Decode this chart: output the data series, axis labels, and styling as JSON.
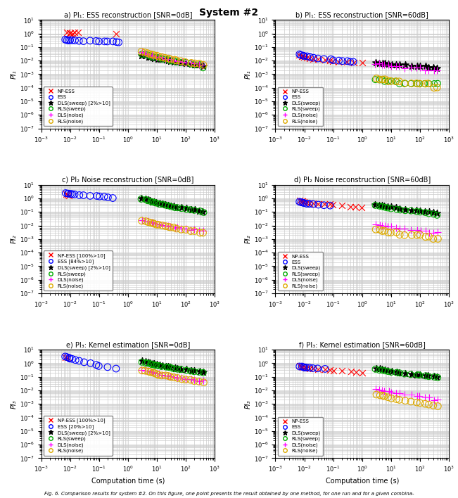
{
  "title": "System #2",
  "subplot_titles": [
    "a) PI₁: ESS reconstruction [SNR=0dB]",
    "b) PI₁: ESS reconstruction [SNR=60dB]",
    "c) PI₂ Noise reconstruction [SNR=0dB]",
    "d) PI₂ Noise reconstruction [SNR=60dB]",
    "e) PI₃: Kernel estimation [SNR=0dB]",
    "f) PI₃: Kernel estimation [SNR=60dB]"
  ],
  "ylabels": [
    "PI₁",
    "PI₁",
    "PI₂",
    "PI₂",
    "PI₃",
    "PI₃"
  ],
  "xlabel": "Computation time (s)",
  "methods": [
    "NP-ESS",
    "ESS",
    "DLS(sweep)",
    "RLS(sweep)",
    "DLS(noise)",
    "RLS(noise)"
  ],
  "colors": [
    "red",
    "blue",
    "black",
    "#00aa00",
    "magenta",
    "#ddaa00"
  ],
  "markers": [
    "x",
    "o",
    "*",
    "o",
    "+",
    "o"
  ],
  "marker_sizes": [
    5,
    6,
    5,
    5,
    5,
    6
  ],
  "legend_a": [
    "NP-ESS",
    "ESS",
    "DLS(sweep) [2%>10]",
    "RLS(sweep)",
    "DLS(noise)",
    "RLS(noise)"
  ],
  "legend_c": [
    "NP-ESS [100%>10]",
    "ESS [84%>10]",
    "DLS(sweep) [2%>10]",
    "RLS(sweep)",
    "DLS(noise)",
    "RLS(noise)"
  ],
  "legend_e": [
    "NP-ESS [100%>10]",
    "ESS [20%>10]",
    "DLS(sweep) [2%>10]",
    "RLS(sweep)",
    "DLS(noise)",
    "RLS(noise)"
  ],
  "legend_b": [
    "NP-ESS",
    "ESS",
    "DLS(sweep)",
    "RLS(sweep)",
    "DLS(noise)",
    "RLS(noise)"
  ],
  "subplot_a": {
    "NP-ESS": {
      "x": [
        0.008,
        0.009,
        0.01,
        0.012,
        0.015,
        0.02,
        0.4
      ],
      "y": [
        1.2,
        1.1,
        1.0,
        1.05,
        1.1,
        1.15,
        1.0
      ]
    },
    "ESS": {
      "x": [
        0.007,
        0.008,
        0.009,
        0.01,
        0.012,
        0.015,
        0.02,
        0.03,
        0.05,
        0.08,
        0.1,
        0.15,
        0.2,
        0.3,
        0.4,
        0.5
      ],
      "y": [
        0.35,
        0.33,
        0.32,
        0.31,
        0.3,
        0.3,
        0.29,
        0.28,
        0.29,
        0.28,
        0.27,
        0.26,
        0.27,
        0.25,
        0.24,
        0.22
      ]
    },
    "DLS(sweep)": {
      "x": [
        3,
        4,
        5,
        6,
        7,
        8,
        10,
        12,
        15,
        20,
        25,
        30,
        40,
        50,
        70,
        100,
        150,
        200,
        300,
        400
      ],
      "y": [
        0.025,
        0.022,
        0.02,
        0.018,
        0.016,
        0.015,
        0.014,
        0.013,
        0.012,
        0.011,
        0.01,
        0.009,
        0.008,
        0.008,
        0.007,
        0.006,
        0.006,
        0.005,
        0.005,
        0.004
      ]
    },
    "RLS(sweep)": {
      "x": [
        3,
        4,
        5,
        6,
        7,
        8,
        10,
        12,
        15,
        20,
        25,
        30,
        40,
        50,
        70,
        100,
        150,
        200,
        300,
        400
      ],
      "y": [
        0.03,
        0.028,
        0.025,
        0.022,
        0.02,
        0.018,
        0.016,
        0.015,
        0.013,
        0.012,
        0.011,
        0.01,
        0.009,
        0.008,
        0.007,
        0.007,
        0.006,
        0.005,
        0.005,
        0.003
      ]
    },
    "DLS(noise)": {
      "x": [
        3,
        4,
        5,
        6,
        7,
        8,
        10,
        12,
        15,
        20,
        25,
        30,
        40,
        50,
        70,
        100,
        150,
        200,
        300,
        400
      ],
      "y": [
        0.04,
        0.035,
        0.03,
        0.028,
        0.025,
        0.022,
        0.02,
        0.018,
        0.016,
        0.014,
        0.013,
        0.012,
        0.01,
        0.009,
        0.008,
        0.007,
        0.007,
        0.006,
        0.005,
        0.005
      ]
    },
    "RLS(noise)": {
      "x": [
        3,
        4,
        5,
        6,
        7,
        8,
        10,
        12,
        15,
        20,
        25,
        30,
        40,
        50,
        70,
        100,
        150,
        200,
        300,
        400
      ],
      "y": [
        0.045,
        0.04,
        0.035,
        0.03,
        0.028,
        0.025,
        0.022,
        0.02,
        0.018,
        0.016,
        0.014,
        0.012,
        0.011,
        0.01,
        0.009,
        0.008,
        0.007,
        0.006,
        0.006,
        0.005
      ]
    }
  },
  "subplot_b": {
    "NP-ESS": {
      "x": [
        0.007,
        0.008,
        0.009,
        0.01,
        0.012,
        0.015,
        0.02,
        0.03,
        0.05,
        0.08,
        0.1,
        0.15,
        0.3,
        0.5,
        1.0
      ],
      "y": [
        0.025,
        0.022,
        0.02,
        0.018,
        0.016,
        0.014,
        0.013,
        0.012,
        0.011,
        0.01,
        0.009,
        0.008,
        0.008,
        0.007,
        0.007
      ]
    },
    "ESS": {
      "x": [
        0.007,
        0.008,
        0.009,
        0.01,
        0.012,
        0.015,
        0.02,
        0.03,
        0.05,
        0.08,
        0.1,
        0.15,
        0.2,
        0.3,
        0.4,
        0.5
      ],
      "y": [
        0.028,
        0.026,
        0.024,
        0.022,
        0.02,
        0.018,
        0.016,
        0.015,
        0.013,
        0.012,
        0.011,
        0.01,
        0.009,
        0.009,
        0.008,
        0.008
      ]
    },
    "DLS(sweep)": {
      "x": [
        3,
        4,
        5,
        6,
        8,
        10,
        15,
        20,
        30,
        50,
        80,
        100,
        150,
        200,
        300,
        400
      ],
      "y": [
        0.007,
        0.007,
        0.006,
        0.006,
        0.006,
        0.005,
        0.005,
        0.005,
        0.005,
        0.004,
        0.004,
        0.004,
        0.004,
        0.003,
        0.003,
        0.003
      ]
    },
    "RLS(sweep)": {
      "x": [
        3,
        4,
        5,
        6,
        8,
        10,
        15,
        20,
        30,
        50,
        80,
        100,
        150,
        200,
        300,
        400
      ],
      "y": [
        0.0004,
        0.0004,
        0.0004,
        0.0003,
        0.0003,
        0.0003,
        0.0003,
        0.0002,
        0.0002,
        0.0002,
        0.0002,
        0.0002,
        0.0002,
        0.0002,
        0.0002,
        0.0002
      ]
    },
    "DLS(noise)": {
      "x": [
        3,
        4,
        5,
        6,
        8,
        10,
        15,
        20,
        30,
        50,
        80,
        100,
        150,
        200,
        300,
        400
      ],
      "y": [
        0.006,
        0.006,
        0.005,
        0.005,
        0.005,
        0.004,
        0.004,
        0.004,
        0.003,
        0.003,
        0.003,
        0.003,
        0.002,
        0.002,
        0.002,
        0.002
      ]
    },
    "RLS(noise)": {
      "x": [
        3,
        4,
        5,
        6,
        8,
        10,
        15,
        20,
        30,
        50,
        80,
        100,
        150,
        200,
        300,
        400
      ],
      "y": [
        0.0005,
        0.0004,
        0.0004,
        0.0004,
        0.0003,
        0.0003,
        0.0003,
        0.0003,
        0.0002,
        0.0002,
        0.0002,
        0.0002,
        0.0002,
        0.0002,
        0.0001,
        0.0001
      ]
    }
  },
  "subplot_c": {
    "NP-ESS": {
      "x": [
        0.007,
        0.008,
        0.009
      ],
      "y": [
        2.0,
        1.8,
        1.5
      ]
    },
    "ESS": {
      "x": [
        0.007,
        0.008,
        0.009,
        0.01,
        0.012,
        0.015,
        0.02,
        0.03,
        0.05,
        0.08,
        0.1,
        0.15,
        0.2,
        0.3
      ],
      "y": [
        2.5,
        2.3,
        2.2,
        2.1,
        2.0,
        1.9,
        1.8,
        1.7,
        1.6,
        1.5,
        1.4,
        1.3,
        1.2,
        1.1
      ]
    },
    "DLS(sweep)": {
      "x": [
        3,
        4,
        5,
        6,
        7,
        8,
        10,
        12,
        15,
        20,
        25,
        30,
        40,
        50,
        70,
        100,
        150,
        200,
        300,
        400
      ],
      "y": [
        1.0,
        0.9,
        0.8,
        0.7,
        0.6,
        0.55,
        0.5,
        0.45,
        0.4,
        0.35,
        0.3,
        0.28,
        0.25,
        0.22,
        0.2,
        0.18,
        0.16,
        0.15,
        0.12,
        0.1
      ]
    },
    "RLS(sweep)": {
      "x": [
        3,
        4,
        5,
        6,
        7,
        8,
        10,
        12,
        15,
        20,
        25,
        30,
        40,
        50,
        70,
        100,
        150,
        200,
        300,
        400
      ],
      "y": [
        0.9,
        0.8,
        0.7,
        0.6,
        0.55,
        0.5,
        0.45,
        0.4,
        0.35,
        0.3,
        0.28,
        0.25,
        0.22,
        0.2,
        0.18,
        0.16,
        0.14,
        0.13,
        0.11,
        0.09
      ]
    },
    "DLS(noise)": {
      "x": [
        3,
        4,
        5,
        6,
        7,
        8,
        10,
        12,
        15,
        20,
        25,
        30,
        40,
        50,
        70,
        100,
        150,
        200,
        300,
        400
      ],
      "y": [
        0.025,
        0.022,
        0.02,
        0.018,
        0.016,
        0.015,
        0.013,
        0.012,
        0.011,
        0.01,
        0.009,
        0.008,
        0.007,
        0.007,
        0.006,
        0.006,
        0.005,
        0.005,
        0.004,
        0.004
      ]
    },
    "RLS(noise)": {
      "x": [
        3,
        4,
        5,
        6,
        7,
        8,
        10,
        12,
        15,
        20,
        25,
        30,
        40,
        50,
        70,
        100,
        150,
        200,
        300,
        400
      ],
      "y": [
        0.022,
        0.02,
        0.018,
        0.016,
        0.014,
        0.013,
        0.012,
        0.011,
        0.01,
        0.009,
        0.008,
        0.007,
        0.007,
        0.006,
        0.005,
        0.005,
        0.004,
        0.004,
        0.003,
        0.003
      ]
    }
  },
  "subplot_d": {
    "NP-ESS": {
      "x": [
        0.007,
        0.008,
        0.009,
        0.01,
        0.012,
        0.015,
        0.02,
        0.03,
        0.05,
        0.08,
        0.1,
        0.2,
        0.4,
        0.6,
        1.0
      ],
      "y": [
        0.7,
        0.65,
        0.6,
        0.55,
        0.5,
        0.45,
        0.42,
        0.4,
        0.38,
        0.35,
        0.32,
        0.3,
        0.25,
        0.22,
        0.2
      ]
    },
    "ESS": {
      "x": [
        0.007,
        0.008,
        0.009,
        0.01,
        0.012,
        0.015,
        0.02,
        0.03,
        0.05,
        0.08
      ],
      "y": [
        0.55,
        0.5,
        0.48,
        0.45,
        0.42,
        0.4,
        0.38,
        0.35,
        0.32,
        0.3
      ]
    },
    "DLS(sweep)": {
      "x": [
        3,
        4,
        5,
        6,
        8,
        10,
        15,
        20,
        30,
        50,
        80,
        100,
        150,
        200,
        300,
        400
      ],
      "y": [
        0.35,
        0.32,
        0.3,
        0.28,
        0.25,
        0.22,
        0.2,
        0.18,
        0.16,
        0.14,
        0.13,
        0.12,
        0.11,
        0.1,
        0.09,
        0.08
      ]
    },
    "RLS(sweep)": {
      "x": [
        3,
        4,
        5,
        6,
        8,
        10,
        15,
        20,
        30,
        50,
        80,
        100,
        150,
        200,
        300,
        400
      ],
      "y": [
        0.3,
        0.28,
        0.25,
        0.22,
        0.2,
        0.18,
        0.16,
        0.14,
        0.13,
        0.12,
        0.11,
        0.1,
        0.09,
        0.08,
        0.07,
        0.06
      ]
    },
    "DLS(noise)": {
      "x": [
        3,
        4,
        5,
        6,
        8,
        10,
        15,
        20,
        30,
        50,
        80,
        100,
        150,
        200,
        300,
        400
      ],
      "y": [
        0.012,
        0.011,
        0.01,
        0.009,
        0.008,
        0.008,
        0.007,
        0.006,
        0.006,
        0.005,
        0.005,
        0.004,
        0.004,
        0.003,
        0.003,
        0.003
      ]
    },
    "RLS(noise)": {
      "x": [
        3,
        4,
        5,
        6,
        8,
        10,
        15,
        20,
        30,
        50,
        80,
        100,
        150,
        200,
        300,
        400
      ],
      "y": [
        0.005,
        0.005,
        0.004,
        0.004,
        0.003,
        0.003,
        0.003,
        0.002,
        0.002,
        0.002,
        0.002,
        0.002,
        0.0015,
        0.0015,
        0.001,
        0.001
      ]
    }
  },
  "subplot_e": {
    "NP-ESS": {
      "x": [
        0.007,
        0.008
      ],
      "y": [
        3.0,
        2.8
      ]
    },
    "ESS": {
      "x": [
        0.007,
        0.008,
        0.009,
        0.01,
        0.012,
        0.015,
        0.02,
        0.03,
        0.05,
        0.08,
        0.1,
        0.2,
        0.4
      ],
      "y": [
        3.0,
        2.8,
        2.5,
        2.2,
        2.0,
        1.8,
        1.5,
        1.2,
        1.0,
        0.8,
        0.6,
        0.5,
        0.4
      ]
    },
    "DLS(sweep)": {
      "x": [
        3,
        4,
        5,
        6,
        7,
        8,
        10,
        12,
        15,
        20,
        25,
        30,
        40,
        50,
        70,
        100,
        150,
        200,
        300,
        400
      ],
      "y": [
        1.5,
        1.3,
        1.2,
        1.1,
        1.0,
        0.9,
        0.8,
        0.7,
        0.65,
        0.6,
        0.55,
        0.5,
        0.45,
        0.4,
        0.38,
        0.35,
        0.3,
        0.28,
        0.25,
        0.22
      ]
    },
    "RLS(sweep)": {
      "x": [
        3,
        4,
        5,
        6,
        7,
        8,
        10,
        12,
        15,
        20,
        25,
        30,
        40,
        50,
        70,
        100,
        150,
        200,
        300,
        400
      ],
      "y": [
        1.2,
        1.1,
        1.0,
        0.9,
        0.8,
        0.75,
        0.7,
        0.65,
        0.6,
        0.55,
        0.5,
        0.45,
        0.4,
        0.38,
        0.35,
        0.3,
        0.28,
        0.25,
        0.22,
        0.2
      ]
    },
    "DLS(noise)": {
      "x": [
        3,
        4,
        5,
        6,
        7,
        8,
        10,
        12,
        15,
        20,
        25,
        30,
        40,
        50,
        70,
        100,
        150,
        200,
        300,
        400
      ],
      "y": [
        0.35,
        0.3,
        0.28,
        0.25,
        0.22,
        0.2,
        0.18,
        0.16,
        0.14,
        0.13,
        0.12,
        0.11,
        0.1,
        0.09,
        0.08,
        0.07,
        0.07,
        0.06,
        0.05,
        0.05
      ]
    },
    "RLS(noise)": {
      "x": [
        3,
        4,
        5,
        6,
        7,
        8,
        10,
        12,
        15,
        20,
        25,
        30,
        40,
        50,
        70,
        100,
        150,
        200,
        300,
        400
      ],
      "y": [
        0.3,
        0.28,
        0.25,
        0.22,
        0.2,
        0.18,
        0.16,
        0.14,
        0.13,
        0.12,
        0.11,
        0.1,
        0.09,
        0.08,
        0.07,
        0.06,
        0.06,
        0.05,
        0.045,
        0.04
      ]
    }
  },
  "subplot_f": {
    "NP-ESS": {
      "x": [
        0.007,
        0.008,
        0.009,
        0.01,
        0.012,
        0.015,
        0.02,
        0.03,
        0.05,
        0.08,
        0.1,
        0.2,
        0.4,
        0.6,
        1.0
      ],
      "y": [
        0.65,
        0.6,
        0.55,
        0.5,
        0.45,
        0.42,
        0.4,
        0.38,
        0.35,
        0.32,
        0.3,
        0.28,
        0.25,
        0.22,
        0.2
      ]
    },
    "ESS": {
      "x": [
        0.007,
        0.008,
        0.009,
        0.01,
        0.012,
        0.015,
        0.02,
        0.03,
        0.05
      ],
      "y": [
        0.6,
        0.55,
        0.52,
        0.5,
        0.48,
        0.45,
        0.42,
        0.4,
        0.38
      ]
    },
    "DLS(sweep)": {
      "x": [
        3,
        4,
        5,
        6,
        8,
        10,
        15,
        20,
        30,
        50,
        80,
        100,
        150,
        200,
        300,
        400
      ],
      "y": [
        0.4,
        0.38,
        0.35,
        0.32,
        0.28,
        0.25,
        0.22,
        0.2,
        0.18,
        0.16,
        0.15,
        0.14,
        0.13,
        0.12,
        0.11,
        0.1
      ]
    },
    "RLS(sweep)": {
      "x": [
        3,
        4,
        5,
        6,
        8,
        10,
        15,
        20,
        30,
        50,
        80,
        100,
        150,
        200,
        300,
        400
      ],
      "y": [
        0.35,
        0.32,
        0.3,
        0.28,
        0.25,
        0.22,
        0.2,
        0.18,
        0.16,
        0.15,
        0.14,
        0.13,
        0.12,
        0.11,
        0.1,
        0.09
      ]
    },
    "DLS(noise)": {
      "x": [
        3,
        4,
        5,
        6,
        8,
        10,
        15,
        20,
        30,
        50,
        80,
        100,
        150,
        200,
        300,
        400
      ],
      "y": [
        0.012,
        0.011,
        0.01,
        0.009,
        0.008,
        0.007,
        0.006,
        0.006,
        0.005,
        0.005,
        0.004,
        0.004,
        0.003,
        0.003,
        0.002,
        0.002
      ]
    },
    "RLS(noise)": {
      "x": [
        3,
        4,
        5,
        6,
        8,
        10,
        15,
        20,
        30,
        50,
        80,
        100,
        150,
        200,
        300,
        400
      ],
      "y": [
        0.005,
        0.0045,
        0.004,
        0.0035,
        0.003,
        0.0025,
        0.0022,
        0.002,
        0.0018,
        0.0015,
        0.0013,
        0.0012,
        0.001,
        0.0009,
        0.0008,
        0.0007
      ]
    }
  },
  "caption": "Fig. 6. Comparison results for system #2. On this figure, one point presents the result obtained by one method, for one run and for a given combina-"
}
